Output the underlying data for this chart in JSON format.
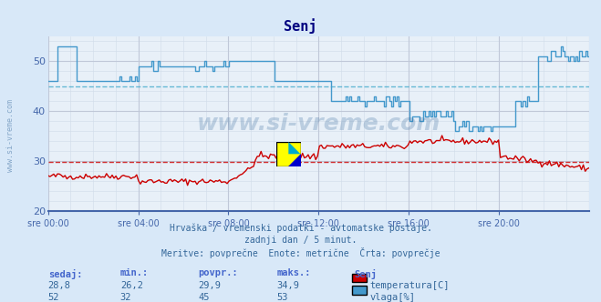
{
  "title": "Senj",
  "bg_color": "#d8e8f8",
  "plot_bg_color": "#e8f0f8",
  "grid_color_major": "#c0c8d8",
  "grid_color_minor": "#d0dce8",
  "temp_color": "#cc0000",
  "humidity_color": "#4499cc",
  "temp_avg_color": "#cc0000",
  "humidity_avg_color": "#44aacc",
  "x_label_color": "#4466aa",
  "y_label_color": "#4466aa",
  "title_color": "#000080",
  "subtitle_color": "#336699",
  "text_color": "#336699",
  "watermark_color": "#336699",
  "ylim_min": 20,
  "ylim_max": 55,
  "temp_avg": 29.9,
  "humidity_avg": 45,
  "subtitle_line1": "Hrvaška / vremenski podatki - avtomatske postaje.",
  "subtitle_line2": "zadnji dan / 5 minut.",
  "subtitle_line3": "Meritve: povprečne  Enote: metrične  Črta: povprečje",
  "stats_headers": [
    "sedaj:",
    "min.:",
    "povpr.:",
    "maks.:"
  ],
  "stats_temp": [
    "28,8",
    "26,2",
    "29,9",
    "34,9"
  ],
  "stats_hum": [
    "52",
    "32",
    "45",
    "53"
  ],
  "legend_temp": "temperatura[C]",
  "legend_hum": "vlaga[%]",
  "station_name": "Senj",
  "x_ticks": [
    "sre 00:00",
    "sre 04:00",
    "sre 08:00",
    "sre 12:00",
    "sre 16:00",
    "sre 20:00"
  ],
  "watermark": "www.si-vreme.com"
}
